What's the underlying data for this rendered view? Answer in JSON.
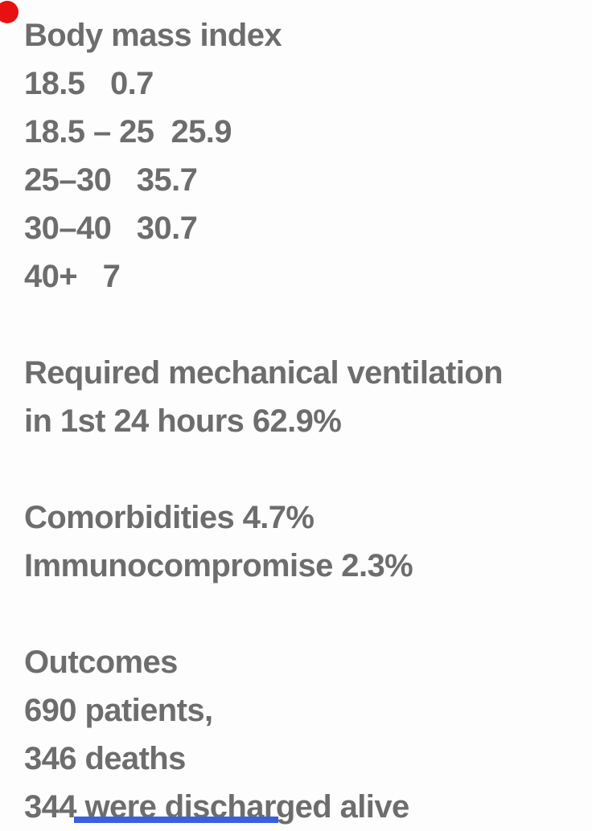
{
  "page": {
    "background": "#fdfdfd",
    "text_color": "#6d6d6d"
  },
  "markers": {
    "red_dot_color": "#e81010",
    "blue_bar_color": "#3c5fdd"
  },
  "content": {
    "sections": [
      {
        "name": "body-mass-index",
        "lines": [
          "Body mass index",
          "18.5   0.7",
          "18.5 – 25  25.9",
          "25–30   35.7",
          "30–40   30.7",
          "40+   7"
        ]
      },
      {
        "name": "mechanical-ventilation",
        "lines": [
          "Required mechanical ventilation",
          "in 1st 24 hours 62.9%"
        ]
      },
      {
        "name": "comorbidities",
        "lines": [
          "Comorbidities 4.7%",
          "Immunocompromise 2.3%"
        ]
      },
      {
        "name": "outcomes",
        "lines": [
          "Outcomes",
          "690 patients,",
          "346 deaths",
          "344 were discharged alive"
        ]
      }
    ]
  }
}
